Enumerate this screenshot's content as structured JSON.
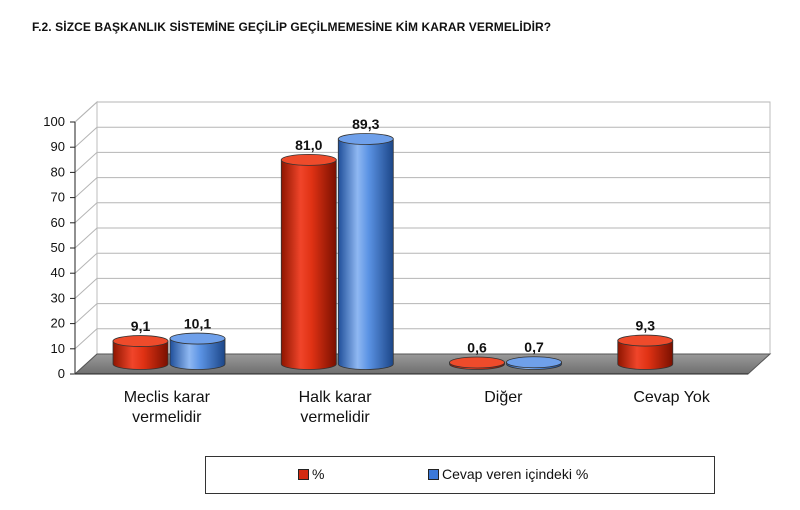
{
  "title": "F.2. SİZCE BAŞKANLIK SİSTEMİNE GEÇİLİP GEÇİLMEMESİNE KİM KARAR VERMELİDİR?",
  "chart_data": {
    "type": "bar",
    "title": "F.2. SİZCE BAŞKANLIK SİSTEMİNE GEÇİLİP GEÇİLMEMESİNE KİM KARAR VERMELİDİR?",
    "categories": [
      [
        "Meclis karar",
        "vermelidir"
      ],
      [
        "Halk karar",
        "vermelidir"
      ],
      [
        "Diğer"
      ],
      [
        "Cevap Yok"
      ]
    ],
    "series": [
      {
        "name": "%",
        "color": "#cc2200",
        "values": [
          9.1,
          81.0,
          0.6,
          9.3
        ],
        "labels": [
          "9,1",
          "81,0",
          "0,6",
          "9,3"
        ]
      },
      {
        "name": "Cevap veren içindeki %",
        "color": "#3b78d8",
        "values": [
          10.1,
          89.3,
          0.7,
          null
        ],
        "labels": [
          "10,1",
          "89,3",
          "0,7",
          ""
        ]
      }
    ],
    "ylim": [
      0,
      100
    ],
    "yticks": [
      "0",
      "10",
      "20",
      "30",
      "40",
      "50",
      "60",
      "70",
      "80",
      "90",
      "100"
    ],
    "grid": true,
    "legend_position": "bottom",
    "style": "3d-cylinder"
  }
}
